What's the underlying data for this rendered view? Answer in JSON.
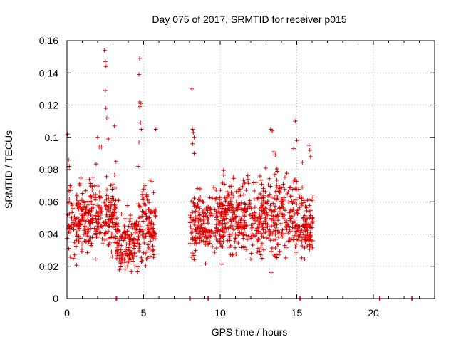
{
  "chart_data": {
    "type": "scatter",
    "title": "Day 075 of 2017, SRMTID for receiver p015",
    "xlabel": "GPS time / hours",
    "ylabel": "SRMTID / TECUs",
    "xlim": [
      0,
      24
    ],
    "ylim": [
      0,
      0.16
    ],
    "xticks": [
      0,
      5,
      10,
      15,
      20
    ],
    "xtick_labels": [
      "0",
      "5",
      "10",
      "15",
      "20"
    ],
    "yticks": [
      0,
      0.02,
      0.04,
      0.06,
      0.08,
      0.1,
      0.12,
      0.14,
      0.16
    ],
    "ytick_labels": [
      "0",
      "0.02",
      "0.04",
      "0.06",
      "0.08",
      "0.1",
      "0.12",
      "0.14",
      "0.16"
    ],
    "grid": true,
    "marker": "plus",
    "color": "#dd0000",
    "series": [
      {
        "name": "SRMTID",
        "clusters": [
          {
            "t_start": 0.0,
            "t_end": 3.2,
            "mean": 0.05,
            "spread": 0.012,
            "count": 320,
            "seed": 11
          },
          {
            "t_start": 3.2,
            "t_end": 4.6,
            "mean": 0.035,
            "spread": 0.01,
            "count": 140,
            "seed": 23
          },
          {
            "t_start": 4.6,
            "t_end": 5.8,
            "mean": 0.045,
            "spread": 0.012,
            "count": 130,
            "seed": 37
          },
          {
            "t_start": 8.0,
            "t_end": 9.5,
            "mean": 0.045,
            "spread": 0.01,
            "count": 150,
            "seed": 41
          },
          {
            "t_start": 9.5,
            "t_end": 12.5,
            "mean": 0.05,
            "spread": 0.012,
            "count": 300,
            "seed": 53
          },
          {
            "t_start": 12.5,
            "t_end": 15.5,
            "mean": 0.052,
            "spread": 0.013,
            "count": 300,
            "seed": 67
          },
          {
            "t_start": 15.5,
            "t_end": 16.1,
            "mean": 0.045,
            "spread": 0.01,
            "count": 70,
            "seed": 79
          }
        ],
        "outliers": [
          [
            0.05,
            0.102
          ],
          [
            0.1,
            0.086
          ],
          [
            0.15,
            0.082
          ],
          [
            0.2,
            0.07
          ],
          [
            2.0,
            0.1
          ],
          [
            2.1,
            0.094
          ],
          [
            2.25,
            0.094
          ],
          [
            2.45,
            0.154
          ],
          [
            2.5,
            0.147
          ],
          [
            2.55,
            0.144
          ],
          [
            2.5,
            0.129
          ],
          [
            2.55,
            0.118
          ],
          [
            2.6,
            0.112
          ],
          [
            2.7,
            0.099
          ],
          [
            3.1,
            0.107
          ],
          [
            3.2,
            0.085
          ],
          [
            4.75,
            0.149
          ],
          [
            4.7,
            0.139
          ],
          [
            4.75,
            0.122
          ],
          [
            4.8,
            0.121
          ],
          [
            4.75,
            0.119
          ],
          [
            4.8,
            0.109
          ],
          [
            4.85,
            0.105
          ],
          [
            4.7,
            0.097
          ],
          [
            4.65,
            0.082
          ],
          [
            5.8,
            0.105
          ],
          [
            8.15,
            0.13
          ],
          [
            8.2,
            0.105
          ],
          [
            8.25,
            0.103
          ],
          [
            8.3,
            0.1
          ],
          [
            8.2,
            0.096
          ],
          [
            8.3,
            0.09
          ],
          [
            13.3,
            0.105
          ],
          [
            13.4,
            0.104
          ],
          [
            13.5,
            0.091
          ],
          [
            13.6,
            0.089
          ],
          [
            14.8,
            0.093
          ],
          [
            14.9,
            0.11
          ],
          [
            15.0,
            0.098
          ],
          [
            15.8,
            0.095
          ],
          [
            15.85,
            0.092
          ],
          [
            15.9,
            0.088
          ]
        ],
        "zeros": [
          3.2,
          8.0,
          9.2,
          15.2,
          20.4,
          22.5
        ]
      }
    ]
  }
}
